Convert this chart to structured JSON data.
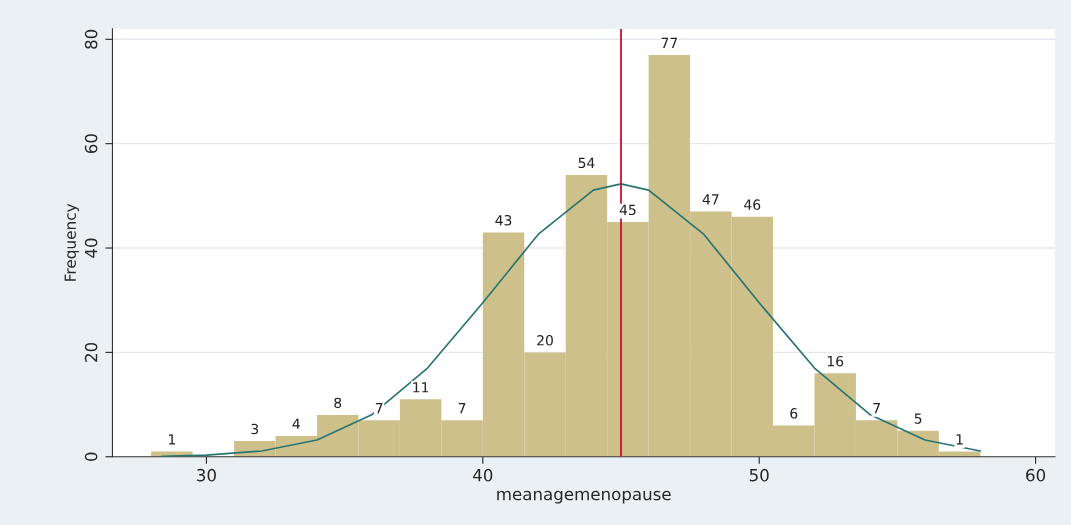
{
  "chart_data": {
    "type": "histogram",
    "xlabel": "meanagemenopause",
    "ylabel": "Frequency",
    "bins": [
      28,
      29.5,
      31,
      32.5,
      34,
      35.5,
      37,
      38.5,
      40,
      41.5,
      43,
      44.5,
      46,
      47.5,
      49,
      50.5,
      52,
      53.5,
      55,
      56.5,
      58
    ],
    "values": [
      1,
      0,
      3,
      4,
      8,
      7,
      11,
      7,
      43,
      20,
      54,
      45,
      77,
      47,
      46,
      6,
      16,
      7,
      5,
      1
    ],
    "value_labels": [
      "1",
      null,
      "3",
      "4",
      "8",
      "7",
      "11",
      "7",
      "43",
      "20",
      "54",
      "45",
      "77",
      "47",
      "46",
      "6",
      "16",
      "7",
      "5",
      "1"
    ],
    "color": "#cdc08a",
    "series": [
      {
        "type": "line",
        "color": "#2a7470",
        "x": [
          28.4,
          30,
          32,
          34,
          36,
          38,
          40,
          42,
          44,
          45,
          46,
          48,
          50,
          52,
          54,
          56,
          58
        ],
        "values": [
          0.1,
          0.3,
          1.1,
          3.2,
          8.1,
          17,
          29.5,
          42.6,
          51.1,
          52.3,
          51.1,
          42.6,
          29.5,
          17,
          8.1,
          3.2,
          1.1
        ]
      }
    ],
    "ref_lines": [
      {
        "axis": "x",
        "value": 45,
        "color": "#c8102e"
      }
    ],
    "xlim": [
      26.6,
      60.7
    ],
    "ylim": [
      0,
      82
    ],
    "xticks": [
      30,
      40,
      50,
      60
    ],
    "yticks": [
      0,
      20,
      40,
      60,
      80
    ],
    "grid": "y",
    "legend": false
  }
}
